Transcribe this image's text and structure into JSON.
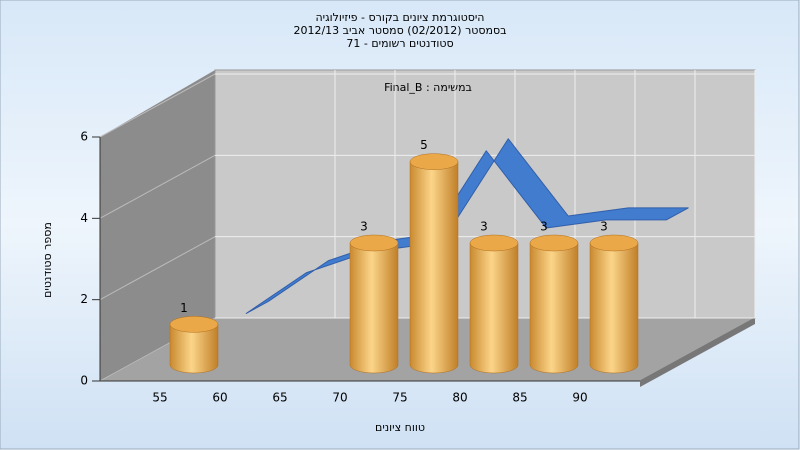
{
  "chart_data": {
    "type": "bar3d",
    "title": "היסטוגרמת ציונים בקורס - פיזיולוגיה",
    "subtitle": "בסמסטר (02/2012) סמסטר אביב 2012/13",
    "subtitle2": "סטודנטים רשומים - 71",
    "annotation": "במשימה : Final_B",
    "x_label": "טווח ציונים",
    "y_label": "מספר סטודנטים",
    "categories": [
      "55",
      "60",
      "65",
      "70",
      "75",
      "80",
      "85",
      "90"
    ],
    "series": [
      {
        "color": "#e8a54a",
        "values": [
          1,
          0,
          0,
          3,
          5,
          3,
          3,
          3
        ]
      },
      {
        "color": "#3a78d0",
        "values": [
          0.5,
          1.5,
          2,
          2.2,
          4.5,
          2.6,
          2.8,
          2.8
        ]
      }
    ],
    "ylim": [
      0,
      6
    ],
    "yticks": [
      0,
      2,
      4,
      6
    ],
    "grid": true
  }
}
